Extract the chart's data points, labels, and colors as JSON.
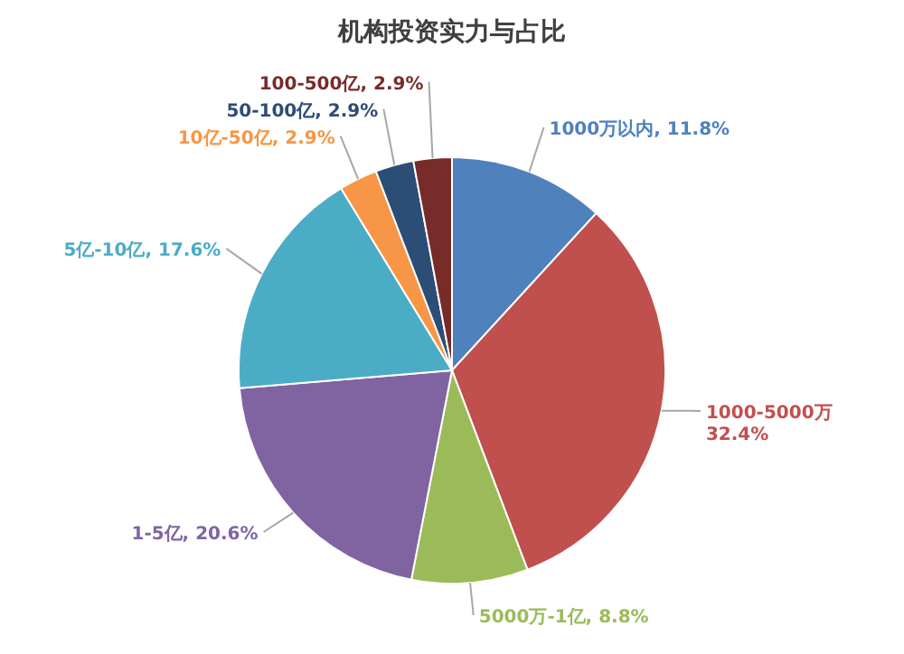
{
  "chart_data": {
    "type": "pie",
    "title": "机构投资实力与占比",
    "categories": [
      "1000万以内",
      "1000-5000万",
      "5000万-1亿",
      "1-5亿",
      "5亿-10亿",
      "10亿-50亿",
      "50-100亿",
      "100-500亿"
    ],
    "values": [
      11.8,
      32.4,
      8.8,
      20.6,
      17.6,
      2.9,
      2.9,
      2.9
    ],
    "value_labels": [
      "11.8%",
      "32.4%",
      "8.8%",
      "20.6%",
      "17.6%",
      "2.9%",
      "2.9%",
      "2.9%"
    ],
    "colors": [
      "#4f81bd",
      "#c0504d",
      "#9bbb59",
      "#8064a2",
      "#4bacc6",
      "#f79646",
      "#2c4d75",
      "#772c2a"
    ]
  }
}
